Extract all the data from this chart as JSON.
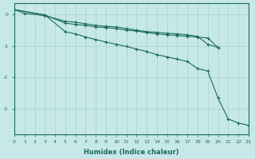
{
  "xlabel": "Humidex (Indice chaleur)",
  "ylabel": "",
  "background_color": "#c6e8e8",
  "grid_color": "#a8d0d0",
  "line_color": "#1a6b5a",
  "xlim": [
    0,
    23
  ],
  "ylim": [
    -3.8,
    0.35
  ],
  "yticks": [
    0,
    -1,
    -2,
    -3
  ],
  "xticks": [
    0,
    1,
    2,
    3,
    4,
    5,
    6,
    7,
    8,
    9,
    10,
    11,
    12,
    13,
    14,
    15,
    16,
    17,
    18,
    19,
    20,
    21,
    22,
    23
  ],
  "series1_x": [
    0,
    1,
    3,
    5,
    6,
    7,
    8,
    9,
    10,
    11,
    12,
    13,
    14,
    15,
    16,
    17,
    18,
    19,
    20
  ],
  "series1_y": [
    0.15,
    0.03,
    -0.04,
    -0.22,
    -0.25,
    -0.3,
    -0.35,
    -0.38,
    -0.4,
    -0.45,
    -0.5,
    -0.55,
    -0.57,
    -0.6,
    -0.62,
    -0.65,
    -0.7,
    -0.95,
    -1.05
  ],
  "series2_x": [
    0,
    3,
    5,
    6,
    7,
    8,
    9,
    10,
    11,
    12,
    13,
    14,
    15,
    16,
    17,
    18,
    19,
    20
  ],
  "series2_y": [
    0.15,
    -0.02,
    -0.28,
    -0.32,
    -0.35,
    -0.4,
    -0.42,
    -0.45,
    -0.5,
    -0.53,
    -0.58,
    -0.62,
    -0.65,
    -0.67,
    -0.7,
    -0.72,
    -0.75,
    -1.05
  ],
  "series3_x": [
    0,
    3,
    5,
    6,
    7,
    8,
    9,
    10,
    11,
    12,
    13,
    14,
    15,
    16,
    17,
    18,
    19,
    20,
    21,
    22,
    23
  ],
  "series3_y": [
    0.15,
    -0.02,
    -0.55,
    -0.62,
    -0.72,
    -0.8,
    -0.88,
    -0.95,
    -1.02,
    -1.1,
    -1.18,
    -1.28,
    -1.35,
    -1.42,
    -1.5,
    -1.72,
    -1.8,
    -2.65,
    -3.32,
    -3.45,
    -3.52
  ]
}
